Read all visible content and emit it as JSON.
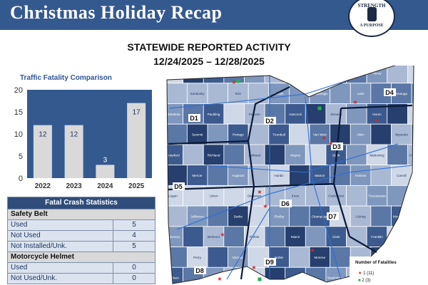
{
  "header": {
    "title": "Christmas Holiday Recap",
    "seal_top": "STRENGTH",
    "seal_bottom": "A PURPOSE"
  },
  "map": {
    "title": "STATEWIDE REPORTED ACTIVITY",
    "date_range": "12/24/2025 – 12/28/2025",
    "districts": [
      "D1",
      "D2",
      "D3",
      "D4",
      "D5",
      "D6",
      "D7",
      "D8",
      "D9"
    ],
    "counties": [
      "Williams",
      "Fulton",
      "Lucas",
      "Ottawa",
      "Defiance",
      "Henry",
      "Wood",
      "Sandusky",
      "Erie",
      "Lorain",
      "Cuyahoga",
      "Lake",
      "Geauga",
      "Ashtabula",
      "Paulding",
      "Putnam",
      "Hancock",
      "Seneca",
      "Huron",
      "Medina",
      "Summit",
      "Portage",
      "Trumbull",
      "Van Wert",
      "Allen",
      "Wyandot",
      "Crawford",
      "Richland",
      "Ashland",
      "Wayne",
      "Stark",
      "Mahoning",
      "Columbiana",
      "Mercer",
      "Auglaize",
      "Hardin",
      "Marion",
      "Holmes",
      "Carroll",
      "Logan",
      "Union",
      "Delaware",
      "Knox",
      "Coshocton",
      "Tuscarawas",
      "Harrison",
      "Jefferson",
      "Darke",
      "Shelby",
      "Champaign",
      "Licking",
      "Muskingum",
      "Guernsey",
      "Belmont",
      "Preble",
      "Miami",
      "Clark",
      "Franklin",
      "Fairfield",
      "Perry",
      "Morgan",
      "Noble",
      "Monroe",
      "Butler",
      "Greene",
      "Madison",
      "Pickaway",
      "Hocking",
      "Athens",
      "Washington",
      "Hamilton",
      "Warren",
      "Clinton",
      "Ross",
      "Vinton",
      "Meigs",
      "Highland",
      "Pike",
      "Jackson",
      "Gallia",
      "Scioto",
      "Lawrence"
    ],
    "legend_title": "Number of Fatalities",
    "legend_items": [
      {
        "label": "1  (11)",
        "color": "#d9262a"
      },
      {
        "label": "2  (3)",
        "color": "#22b14c"
      }
    ]
  },
  "chart": {
    "title": "Traffic Fatality Comparison"
  },
  "chart_data": {
    "type": "bar",
    "title": "Traffic Fatality Comparison",
    "categories": [
      "2022",
      "2023",
      "2024",
      "2025"
    ],
    "values": [
      12,
      12,
      3,
      17
    ],
    "ylim": [
      0,
      20
    ],
    "yticks": [
      0,
      5,
      10,
      15,
      20
    ],
    "grid": false,
    "colors": {
      "bar": "#d9d9d9",
      "plot_bg": "#34598f"
    }
  },
  "stats": {
    "title": "Fatal Crash Statistics",
    "sections": [
      {
        "heading": "Safety Belt",
        "rows": [
          {
            "label": "Used",
            "value": "5"
          },
          {
            "label": "Not Used",
            "value": "4"
          },
          {
            "label": "Not Installed/Unk.",
            "value": "5"
          }
        ]
      },
      {
        "heading": "Motorcycle Helmet",
        "rows": [
          {
            "label": "Used",
            "value": "0"
          },
          {
            "label": "Not Used/Unk.",
            "value": "0"
          }
        ]
      }
    ]
  }
}
